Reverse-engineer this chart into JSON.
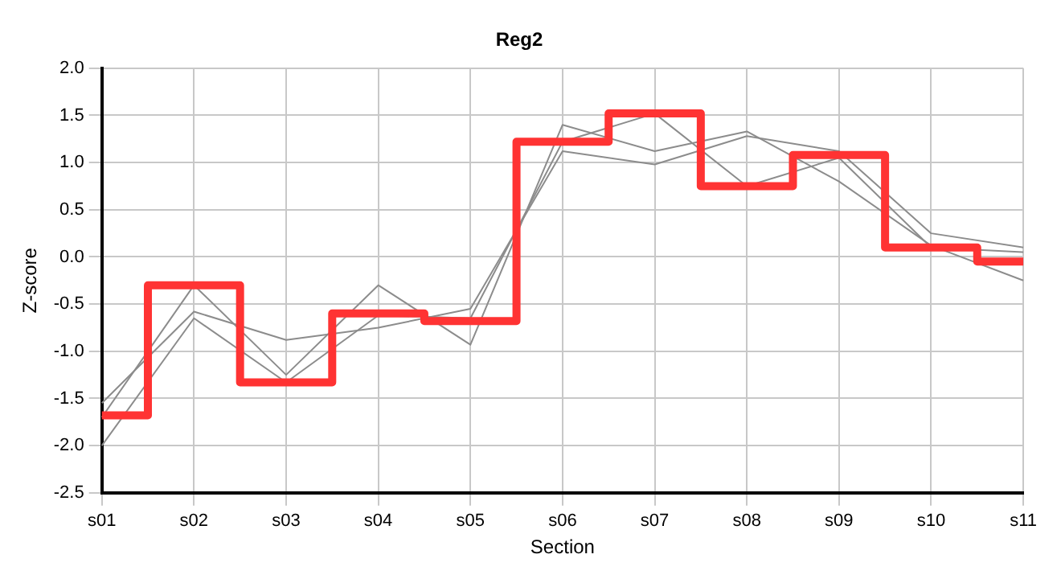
{
  "chart_data": {
    "type": "line",
    "title": "Reg2",
    "xlabel": "Section",
    "ylabel": "Z-score",
    "categories": [
      "s01",
      "s02",
      "s03",
      "s04",
      "s05",
      "s06",
      "s07",
      "s08",
      "s09",
      "s10",
      "s11"
    ],
    "ylim": [
      -2.5,
      2.0
    ],
    "yticks": [
      {
        "value": -2.5,
        "label": "-2.5"
      },
      {
        "value": -2,
        "label": "-2.0"
      },
      {
        "value": -1.5,
        "label": "-1.5"
      },
      {
        "value": -1,
        "label": "-1.0"
      },
      {
        "value": -0.5,
        "label": "-0.5"
      },
      {
        "value": 0,
        "label": "0.0"
      },
      {
        "value": 0.5,
        "label": "0.5"
      },
      {
        "value": 1,
        "label": "1.0"
      },
      {
        "value": 1.5,
        "label": "1.5"
      },
      {
        "value": 2,
        "label": "2.0"
      }
    ],
    "grid": true,
    "marker": "none",
    "series": [
      {
        "color": "#8c8c8c",
        "values": [
          -1.55,
          -0.58,
          -0.88,
          -0.75,
          -0.55,
          1.12,
          0.98,
          1.28,
          1.12,
          0.25,
          0.1
        ]
      },
      {
        "color": "#8c8c8c",
        "values": [
          -1.7,
          -0.3,
          -1.25,
          -0.3,
          -0.93,
          1.4,
          1.12,
          1.33,
          0.8,
          0.12,
          -0.25
        ]
      },
      {
        "color": "#8c8c8c",
        "values": [
          -2.0,
          -0.65,
          -1.33,
          -0.62,
          -0.65,
          1.22,
          1.52,
          0.75,
          1.05,
          0.1,
          0.05
        ]
      },
      {
        "type": "step",
        "color": "#ff3333",
        "values": [
          -1.68,
          -0.3,
          -1.33,
          -0.6,
          -0.68,
          1.22,
          1.52,
          0.75,
          1.08,
          0.1,
          -0.05
        ]
      }
    ]
  }
}
